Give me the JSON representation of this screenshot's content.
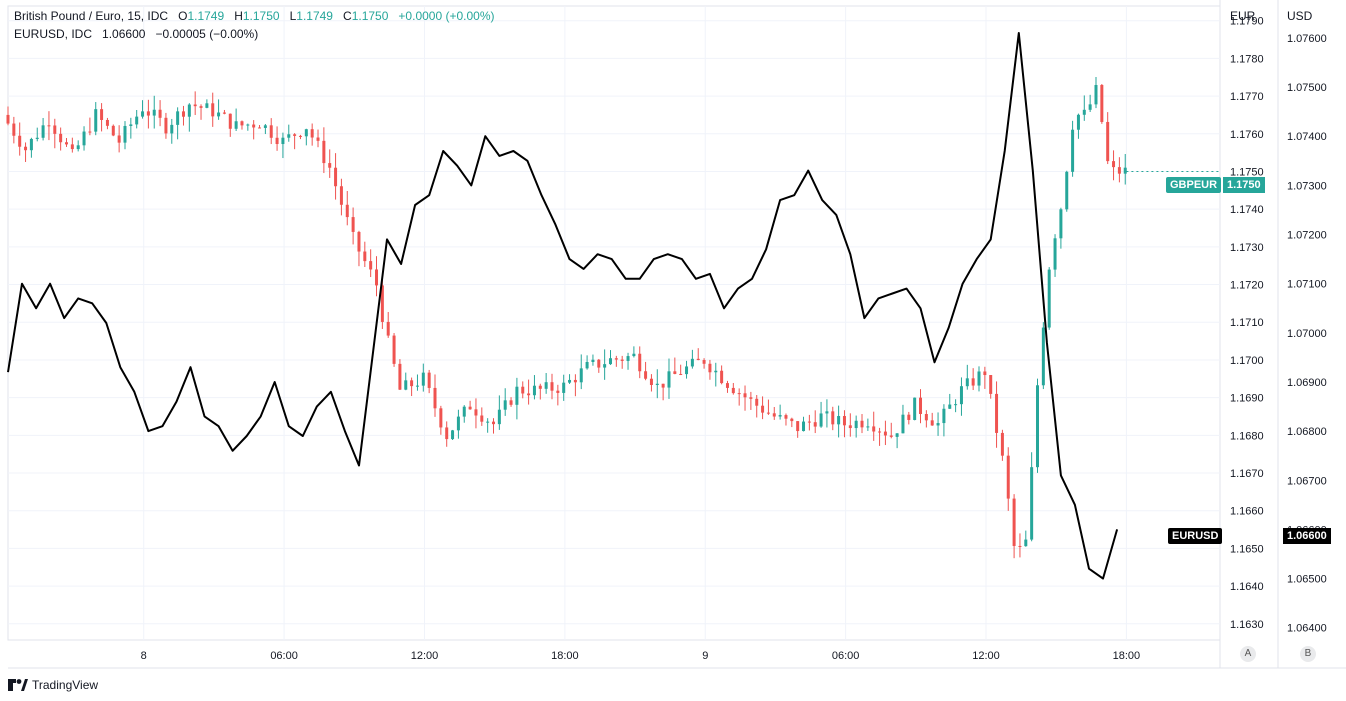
{
  "legend": {
    "gbpeur": {
      "name": "British Pound / Euro, 15, IDC",
      "o_label": "O",
      "o": "1.1749",
      "h_label": "H",
      "h": "1.1750",
      "l_label": "L",
      "l": "1.1749",
      "c_label": "C",
      "c": "1.1750",
      "change": "+0.0000 (+0.00%)"
    },
    "eurusd": {
      "name": "EURUSD, IDC",
      "value": "1.06600",
      "change": "−0.00005 (−0.00%)"
    }
  },
  "axes": {
    "left_currency": "EUR",
    "right_currency": "USD",
    "scale_a": "A",
    "scale_b": "B"
  },
  "badges": {
    "gbpeur": {
      "label": "GBPEUR",
      "value": "1.1750",
      "color": "#26a69a"
    },
    "eurusd": {
      "label": "EURUSD",
      "value": "1.06600",
      "color": "#000000"
    }
  },
  "brand": "TradingView",
  "colors": {
    "up": "#26a69a",
    "down": "#ef5350",
    "line": "#000000",
    "grid": "#f0f3fa"
  },
  "chart_data": {
    "type": "line",
    "title": "British Pound / Euro, 15, IDC",
    "x_ticks": [
      "8",
      "06:00",
      "12:00",
      "18:00",
      "9",
      "06:00",
      "12:00",
      "18:00"
    ],
    "x_tick_hours": [
      0,
      6,
      12,
      18,
      24,
      30,
      36,
      42
    ],
    "x_range_hours": [
      -5.8,
      46
    ],
    "eur_axis": {
      "ticks": [
        "1.1790",
        "1.1780",
        "1.1770",
        "1.1760",
        "1.1750",
        "1.1740",
        "1.1730",
        "1.1720",
        "1.1710",
        "1.1700",
        "1.1690",
        "1.1680",
        "1.1670",
        "1.1660",
        "1.1650",
        "1.1640",
        "1.1630"
      ],
      "range": [
        1.16257,
        1.17939
      ]
    },
    "usd_axis": {
      "ticks": [
        "1.07600",
        "1.07500",
        "1.07400",
        "1.07300",
        "1.07200",
        "1.07100",
        "1.07000",
        "1.06900",
        "1.06800",
        "1.06700",
        "1.06600",
        "1.06500",
        "1.06400"
      ],
      "range": [
        1.06375,
        1.07665
      ]
    },
    "series": [
      {
        "name": "British Pound / Euro",
        "kind": "candles",
        "axis": "EUR",
        "points": [
          [
            -5.8,
            1.1765
          ],
          [
            -4.8,
            1.1756
          ],
          [
            -3.8,
            1.1764
          ],
          [
            -2.8,
            1.1754
          ],
          [
            -1.8,
            1.1765
          ],
          [
            -0.8,
            1.1758
          ],
          [
            0.2,
            1.1767
          ],
          [
            1.2,
            1.1762
          ],
          [
            2.2,
            1.1768
          ],
          [
            3.2,
            1.1766
          ],
          [
            4.2,
            1.1762
          ],
          [
            5.2,
            1.1763
          ],
          [
            6.2,
            1.1758
          ],
          [
            7.2,
            1.1762
          ],
          [
            8.2,
            1.1751
          ],
          [
            9.2,
            1.1732
          ],
          [
            10.2,
            1.172
          ],
          [
            10.6,
            1.1707
          ],
          [
            11.2,
            1.1692
          ],
          [
            12.2,
            1.1695
          ],
          [
            13.2,
            1.168
          ],
          [
            14.2,
            1.1688
          ],
          [
            15.2,
            1.1683
          ],
          [
            16.2,
            1.1692
          ],
          [
            17.2,
            1.1692
          ],
          [
            18.2,
            1.1693
          ],
          [
            19.2,
            1.1698
          ],
          [
            20.2,
            1.17
          ],
          [
            21.2,
            1.1701
          ],
          [
            22.2,
            1.1693
          ],
          [
            23.2,
            1.1697
          ],
          [
            24.2,
            1.17
          ],
          [
            25.2,
            1.1694
          ],
          [
            26.2,
            1.1689
          ],
          [
            27.2,
            1.1685
          ],
          [
            28.2,
            1.1682
          ],
          [
            29.2,
            1.1685
          ],
          [
            30.2,
            1.1683
          ],
          [
            31.2,
            1.1684
          ],
          [
            32.2,
            1.168
          ],
          [
            33.2,
            1.1688
          ],
          [
            34.2,
            1.1683
          ],
          [
            35.2,
            1.1692
          ],
          [
            36.2,
            1.1697
          ],
          [
            37.0,
            1.1672
          ],
          [
            37.5,
            1.1648
          ],
          [
            38.0,
            1.1652
          ],
          [
            38.5,
            1.1698
          ],
          [
            39.0,
            1.1728
          ],
          [
            39.5,
            1.1742
          ],
          [
            40.0,
            1.1765
          ],
          [
            40.5,
            1.1765
          ],
          [
            41.0,
            1.1772
          ],
          [
            41.5,
            1.175
          ],
          [
            42.0,
            1.175
          ]
        ]
      },
      {
        "name": "EURUSD",
        "kind": "line",
        "axis": "USD",
        "points": [
          [
            -5.8,
            1.0692
          ],
          [
            -5.2,
            1.071
          ],
          [
            -4.6,
            1.0705
          ],
          [
            -4.0,
            1.071
          ],
          [
            -3.4,
            1.0703
          ],
          [
            -2.8,
            1.0707
          ],
          [
            -2.2,
            1.0706
          ],
          [
            -1.6,
            1.0702
          ],
          [
            -1.0,
            1.0693
          ],
          [
            -0.4,
            1.0688
          ],
          [
            0.2,
            1.068
          ],
          [
            0.8,
            1.0681
          ],
          [
            1.4,
            1.0686
          ],
          [
            2.0,
            1.0693
          ],
          [
            2.6,
            1.0683
          ],
          [
            3.2,
            1.0681
          ],
          [
            3.8,
            1.0676
          ],
          [
            4.4,
            1.0679
          ],
          [
            5.0,
            1.0683
          ],
          [
            5.6,
            1.069
          ],
          [
            6.2,
            1.0681
          ],
          [
            6.8,
            1.0679
          ],
          [
            7.4,
            1.0685
          ],
          [
            8.0,
            1.0688
          ],
          [
            8.6,
            1.068
          ],
          [
            9.2,
            1.0673
          ],
          [
            9.8,
            1.0696
          ],
          [
            10.4,
            1.0719
          ],
          [
            11.0,
            1.0714
          ],
          [
            11.6,
            1.0726
          ],
          [
            12.2,
            1.0728
          ],
          [
            12.8,
            1.0737
          ],
          [
            13.4,
            1.0734
          ],
          [
            14.0,
            1.073
          ],
          [
            14.6,
            1.074
          ],
          [
            15.2,
            1.0736
          ],
          [
            15.8,
            1.0737
          ],
          [
            16.4,
            1.0735
          ],
          [
            17.0,
            1.0728
          ],
          [
            17.6,
            1.0722
          ],
          [
            18.2,
            1.0715
          ],
          [
            18.8,
            1.0713
          ],
          [
            19.4,
            1.0716
          ],
          [
            20.0,
            1.0715
          ],
          [
            20.6,
            1.0711
          ],
          [
            21.2,
            1.0711
          ],
          [
            21.8,
            1.0715
          ],
          [
            22.4,
            1.0716
          ],
          [
            23.0,
            1.0715
          ],
          [
            23.6,
            1.0711
          ],
          [
            24.2,
            1.0712
          ],
          [
            24.8,
            1.0705
          ],
          [
            25.4,
            1.0709
          ],
          [
            26.0,
            1.0711
          ],
          [
            26.6,
            1.0717
          ],
          [
            27.2,
            1.0727
          ],
          [
            27.8,
            1.0728
          ],
          [
            28.4,
            1.0733
          ],
          [
            29.0,
            1.0727
          ],
          [
            29.6,
            1.0724
          ],
          [
            30.2,
            1.0716
          ],
          [
            30.8,
            1.0703
          ],
          [
            31.4,
            1.0707
          ],
          [
            32.0,
            1.0708
          ],
          [
            32.6,
            1.0709
          ],
          [
            33.2,
            1.0705
          ],
          [
            33.8,
            1.0694
          ],
          [
            34.4,
            1.0701
          ],
          [
            35.0,
            1.071
          ],
          [
            35.6,
            1.0715
          ],
          [
            36.2,
            1.0719
          ],
          [
            36.8,
            1.0737
          ],
          [
            37.4,
            1.0761
          ],
          [
            38.0,
            1.0733
          ],
          [
            38.6,
            1.0698
          ],
          [
            39.2,
            1.0671
          ],
          [
            39.8,
            1.0665
          ],
          [
            40.4,
            1.0652
          ],
          [
            41.0,
            1.065
          ],
          [
            41.6,
            1.066
          ]
        ]
      }
    ],
    "grid": true
  }
}
